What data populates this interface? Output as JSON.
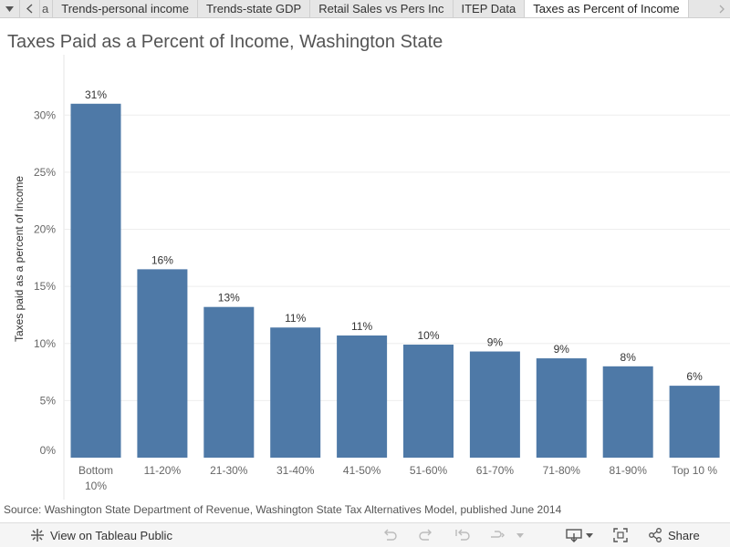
{
  "tabs": {
    "prev_fragment": "a",
    "items": [
      {
        "label": "Trends-personal income",
        "active": false
      },
      {
        "label": "Trends-state GDP",
        "active": false
      },
      {
        "label": "Retail Sales vs Pers Inc",
        "active": false
      },
      {
        "label": "ITEP Data",
        "active": false
      },
      {
        "label": "Taxes as Percent of Income",
        "active": true
      }
    ]
  },
  "source_note": "Source: Washington State Department of Revenue, Washington State Tax Alternatives Model, published June 2014",
  "toolbar": {
    "view_label": "View on Tableau Public",
    "share_label": "Share",
    "icons": [
      "tableau-logo-icon",
      "undo-icon",
      "redo-icon",
      "revert-icon",
      "refresh-icon",
      "caret-down-icon",
      "download-icon",
      "fullscreen-icon",
      "share-icon"
    ]
  },
  "colors": {
    "bar": "#4e79a7",
    "grid": "#eeeeee",
    "axis_text": "#666666"
  },
  "chart_data": {
    "type": "bar",
    "title": "Taxes Paid as a Percent of Income, Washington State",
    "xlabel": "",
    "ylabel": "Taxes paid as a percent of income",
    "categories": [
      "Bottom 10%",
      "11-20%",
      "21-30%",
      "31-40%",
      "41-50%",
      "51-60%",
      "61-70%",
      "71-80%",
      "81-90%",
      "Top 10 %"
    ],
    "values": [
      31,
      16.5,
      13.2,
      11.4,
      10.7,
      9.9,
      9.3,
      8.7,
      8.0,
      6.3
    ],
    "data_labels": [
      "31%",
      "16%",
      "13%",
      "11%",
      "11%",
      "10%",
      "9%",
      "9%",
      "8%",
      "6%"
    ],
    "yticks": [
      0,
      5,
      10,
      15,
      20,
      25,
      30
    ],
    "ytick_labels": [
      "0%",
      "5%",
      "10%",
      "15%",
      "20%",
      "25%",
      "30%"
    ],
    "ylim": [
      0,
      32.5
    ],
    "grid": true,
    "legend": "none"
  }
}
